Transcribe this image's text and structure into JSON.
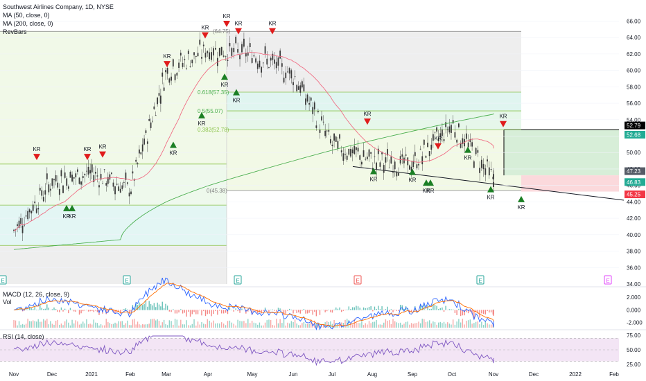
{
  "header": {
    "symbol_line": "Southwest Airlines Company, 1D, NYSE",
    "ma50_label": "MA (50, close, 0)",
    "ma200_label": "MA (200, close, 0)",
    "revbars_label": "RevBars"
  },
  "panes": {
    "macd_label": "MACD (12, 26, close, 9)",
    "vol_label": "Vol",
    "rsi_label": "RSI (14, close)"
  },
  "chart_data": {
    "type": "candlestick",
    "x_ticks": [
      "Nov",
      "Dec",
      "2021",
      "Feb",
      "Mar",
      "Apr",
      "May",
      "Jun",
      "Jul",
      "Aug",
      "Sep",
      "Oct",
      "Nov",
      "Dec",
      "2022",
      "Feb"
    ],
    "price_axis_ticks": [
      "66.00",
      "64.00",
      "62.00",
      "60.00",
      "58.00",
      "56.00",
      "54.00",
      "52.00",
      "50.00",
      "48.00",
      "46.00",
      "44.00",
      "42.00",
      "40.00",
      "38.00",
      "36.00",
      "34.00"
    ],
    "price_range": [
      34,
      67.3
    ],
    "price_badges": [
      {
        "label": "52.79",
        "value": 52.79,
        "color": "#000000"
      },
      {
        "label": "52.68",
        "value": 52.68,
        "color": "#22ab94"
      },
      {
        "label": "47.23",
        "value": 47.23,
        "color": "#555b66"
      },
      {
        "label": "46.83",
        "value": 46.83,
        "color": "#22ab94"
      },
      {
        "label": "45.25",
        "value": 45.25,
        "color": "#f23645"
      }
    ],
    "close_price_series": {
      "months": [
        "Nov",
        "Dec",
        "2021",
        "Feb",
        "Mar",
        "Apr",
        "May",
        "Jun",
        "Jul",
        "Aug",
        "Sep",
        "Oct",
        "Nov"
      ],
      "values": [
        40.5,
        46.5,
        47.5,
        45.5,
        60.0,
        62.5,
        62.0,
        59.5,
        51.0,
        49.0,
        48.5,
        53.5,
        46.8
      ]
    },
    "moving_averages": [
      {
        "name": "MA (50, close, 0)",
        "color": "#f06d84"
      },
      {
        "name": "MA (200, close, 0)",
        "color": "#4caf50"
      }
    ],
    "fibonacci_1": {
      "levels": [
        {
          "label": "(64.75)",
          "value": 64.75
        },
        {
          "label": "0.618(57.35)",
          "value": 57.35
        },
        {
          "label": "0.5(55.07)",
          "value": 55.07
        },
        {
          "label": "0.382(52.78)",
          "value": 52.78
        },
        {
          "label": "0(45.38)",
          "value": 45.38
        }
      ]
    },
    "fibonacci_2_levels": [
      48.6,
      43.6,
      38.7
    ],
    "trendline": {
      "from": 48.3,
      "to": 44.2
    },
    "position_tool": {
      "entry": 47.23,
      "target": 52.79,
      "stop": 45.25
    },
    "kr_sell_signals": [
      {
        "label": "KR",
        "price": 49.5
      },
      {
        "label": "KR",
        "price": 49.5
      },
      {
        "label": "KR",
        "price": 49.8
      },
      {
        "label": "KR",
        "price": 60.8
      },
      {
        "label": "KR",
        "price": 64.3
      },
      {
        "label": "KR",
        "price": 65.7
      },
      {
        "label": "KR",
        "price": 64.8
      },
      {
        "label": "KR",
        "price": 64.8
      },
      {
        "label": "KR",
        "price": 53.8
      },
      {
        "label": "KR",
        "price": 50.8
      },
      {
        "label": "KR",
        "price": 53.5
      }
    ],
    "kr_buy_signals": [
      {
        "label": "KR",
        "price": 43.2
      },
      {
        "label": "KR",
        "price": 43.2
      },
      {
        "label": "KR",
        "price": 50.9
      },
      {
        "label": "KR",
        "price": 54.5
      },
      {
        "label": "KR",
        "price": 59.2
      },
      {
        "label": "KR",
        "price": 57.3
      },
      {
        "label": "KR",
        "price": 47.7
      },
      {
        "label": "KR",
        "price": 47.6
      },
      {
        "label": "KR",
        "price": 46.3
      },
      {
        "label": "KR",
        "price": 46.3
      },
      {
        "label": "KR",
        "price": 50.3
      },
      {
        "label": "KR",
        "price": 45.5
      },
      {
        "label": "KR",
        "price": 44.3
      }
    ],
    "earnings_markers": [
      {
        "label": "E",
        "color": "#26a69a"
      },
      {
        "label": "E",
        "color": "#26a69a"
      },
      {
        "label": "E",
        "color": "#26a69a"
      },
      {
        "label": "E",
        "color": "#ef5350"
      },
      {
        "label": "E",
        "color": "#26a69a"
      },
      {
        "label": "E",
        "color": "#e040fb"
      }
    ],
    "macd_axis_ticks": [
      "2.000",
      "0.000",
      "-2.000"
    ],
    "macd_range": [
      -2.8,
      3.2
    ],
    "rsi_axis_ticks": [
      "75.00",
      "50.00",
      "25.00"
    ],
    "rsi_range": [
      20,
      80
    ],
    "rsi_band": [
      30,
      70
    ]
  }
}
